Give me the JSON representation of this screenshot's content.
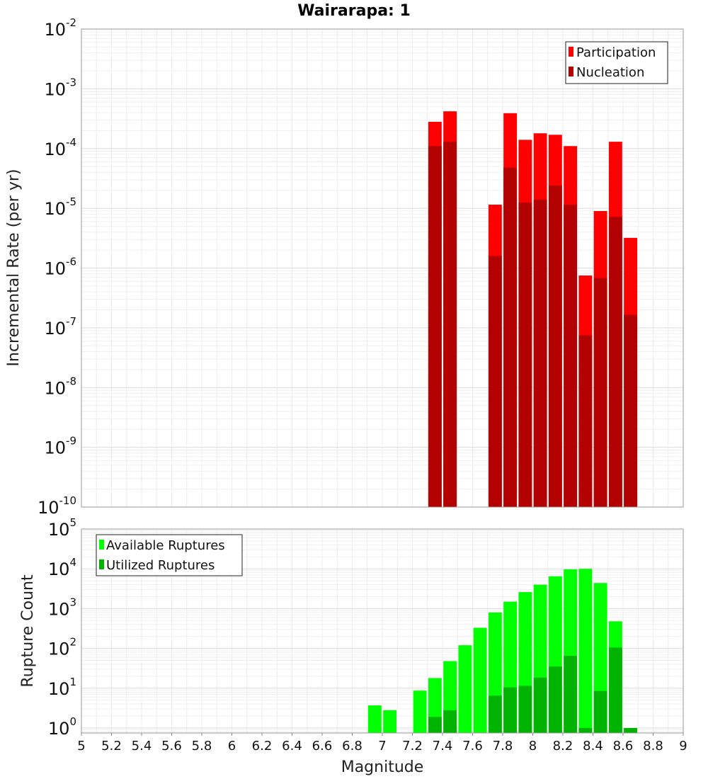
{
  "chart_data": [
    {
      "type": "bar",
      "title": "Wairarapa: 1",
      "xlabel": "",
      "ylabel": "Incremental Rate (per yr)",
      "yscale": "log",
      "xlim": [
        5,
        9
      ],
      "ylim": [
        1e-10,
        0.01
      ],
      "y_tick_exponents": [
        "-2",
        "-3",
        "-4",
        "-5",
        "-6",
        "-7",
        "-8",
        "-9",
        "-10"
      ],
      "y_tick_base": "10",
      "grid": true,
      "legend_position": "top-right",
      "x": [
        7.35,
        7.45,
        7.75,
        7.85,
        7.95,
        8.05,
        8.15,
        8.25,
        8.35,
        8.45,
        8.55,
        8.65
      ],
      "series": [
        {
          "name": "Participation",
          "color": "#ff0000",
          "values": [
            0.00028,
            0.00042,
            1.15e-05,
            0.00039,
            0.00014,
            0.00018,
            0.00017,
            0.00011,
            7.5e-07,
            9e-06,
            0.00013,
            3.2e-06
          ]
        },
        {
          "name": "Nucleation",
          "color": "#b30000",
          "values": [
            0.00011,
            0.00013,
            1.6e-06,
            4.8e-05,
            1.25e-05,
            1.4e-05,
            2.4e-05,
            1.15e-05,
            7.5e-08,
            6.8e-07,
            7.2e-06,
            1.65e-07
          ]
        }
      ]
    },
    {
      "type": "bar",
      "title": "",
      "xlabel": "Magnitude",
      "ylabel": "Rupture Count",
      "yscale": "log",
      "xlim": [
        5,
        9
      ],
      "ylim": [
        0.75,
        100000.0
      ],
      "y_tick_exponents": [
        "5",
        "4",
        "3",
        "2",
        "1",
        "0"
      ],
      "y_tick_base": "10",
      "x_ticks": [
        "5",
        "5.2",
        "5.4",
        "5.6",
        "5.8",
        "6",
        "6.2",
        "6.4",
        "6.6",
        "6.8",
        "7",
        "7.2",
        "7.4",
        "7.6",
        "7.8",
        "8",
        "8.2",
        "8.4",
        "8.6",
        "8.8",
        "9"
      ],
      "grid": true,
      "legend_position": "top-left",
      "x": [
        6.95,
        7.05,
        7.25,
        7.35,
        7.45,
        7.55,
        7.65,
        7.75,
        7.85,
        7.95,
        8.05,
        8.15,
        8.25,
        8.35,
        8.45,
        8.55,
        8.65
      ],
      "series": [
        {
          "name": "Available Ruptures",
          "color": "#00ff00",
          "values": [
            3.7,
            2.8,
            8.7,
            18,
            48,
            120,
            330,
            800,
            1500,
            2600,
            4000,
            6500,
            9700,
            10000,
            4400,
            480,
            1
          ]
        },
        {
          "name": "Utilized Ruptures",
          "color": "#00b300",
          "values": [
            0,
            0,
            0,
            1.9,
            2.8,
            0,
            0,
            6.5,
            10.5,
            11.5,
            18.5,
            35,
            65,
            1,
            8.5,
            105,
            1
          ]
        }
      ]
    }
  ]
}
